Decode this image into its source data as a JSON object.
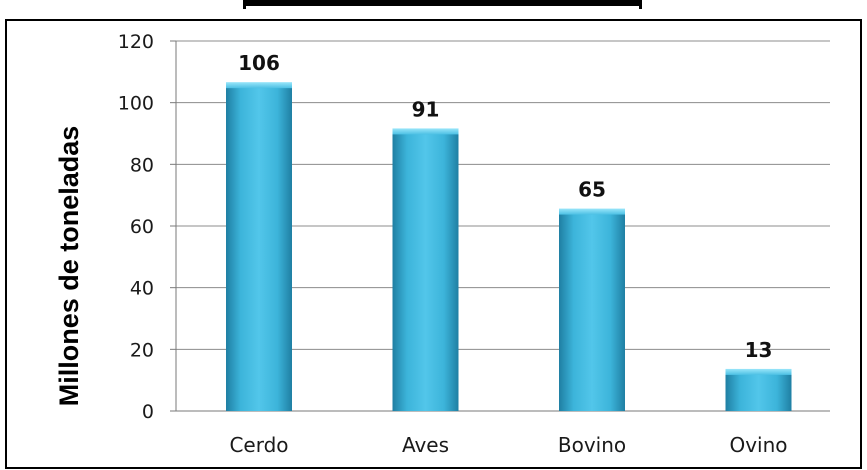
{
  "chart_data": {
    "type": "bar",
    "title": "",
    "xlabel": "",
    "ylabel": "Millones de toneladas",
    "categories": [
      "Cerdo",
      "Aves",
      "Bovino",
      "Ovino"
    ],
    "values": [
      106,
      91,
      65,
      13
    ],
    "data_labels": [
      "106",
      "91",
      "65",
      "13"
    ],
    "y_ticks": [
      0,
      20,
      40,
      60,
      80,
      100,
      120
    ],
    "y_tick_labels": [
      "0",
      "20",
      "40",
      "60",
      "80",
      "100",
      "120"
    ],
    "ylim": [
      0,
      120
    ],
    "grid": true,
    "legend": "none",
    "colors": {
      "bar_light": "#63d2f0",
      "bar_mid": "#3cb4da",
      "bar_dark": "#1f7fa3",
      "grid": "#8c8c8c",
      "border": "#000000"
    }
  }
}
